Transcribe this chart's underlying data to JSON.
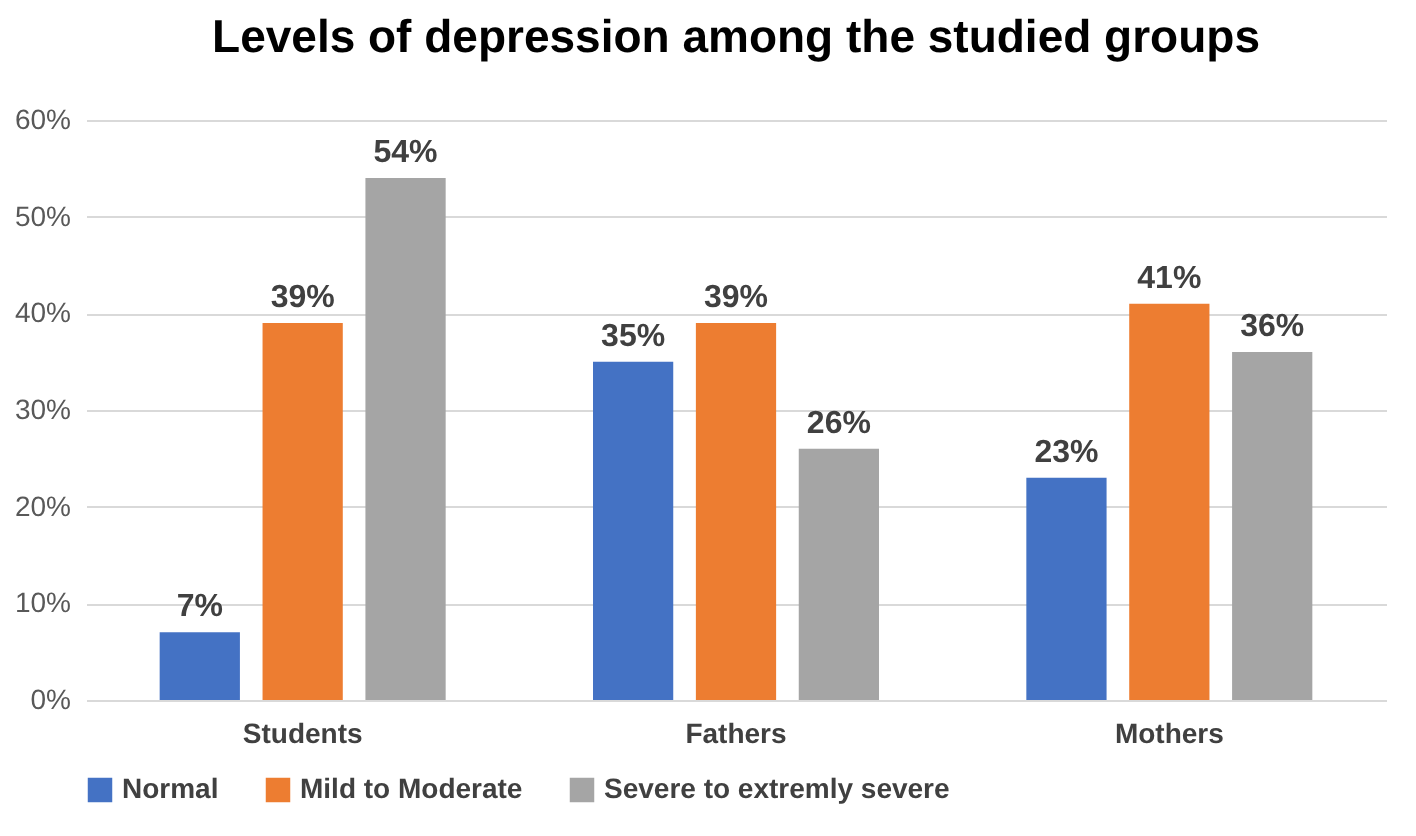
{
  "chart_data": {
    "type": "bar",
    "title": "Levels of depression among the studied groups",
    "categories": [
      "Students",
      "Fathers",
      "Mothers"
    ],
    "series": [
      {
        "name": "Normal",
        "color": "#4472c4",
        "values": [
          7,
          35,
          23
        ],
        "value_labels": [
          "7%",
          "35%",
          "23%"
        ]
      },
      {
        "name": "Mild to Moderate",
        "color": "#ed7d31",
        "values": [
          39,
          39,
          41
        ],
        "value_labels": [
          "39%",
          "39%",
          "41%"
        ]
      },
      {
        "name": "Severe to extremly severe",
        "color": "#a5a5a5",
        "values": [
          54,
          26,
          36
        ],
        "value_labels": [
          "54%",
          "26%",
          "36%"
        ]
      }
    ],
    "ylim": [
      0,
      60
    ],
    "yticks": [
      {
        "value": 0,
        "label": "0%"
      },
      {
        "value": 10,
        "label": "10%"
      },
      {
        "value": 20,
        "label": "20%"
      },
      {
        "value": 30,
        "label": "30%"
      },
      {
        "value": 40,
        "label": "40%"
      },
      {
        "value": 50,
        "label": "50%"
      },
      {
        "value": 60,
        "label": "60%"
      }
    ],
    "grid": "y",
    "legend": "bottom"
  }
}
